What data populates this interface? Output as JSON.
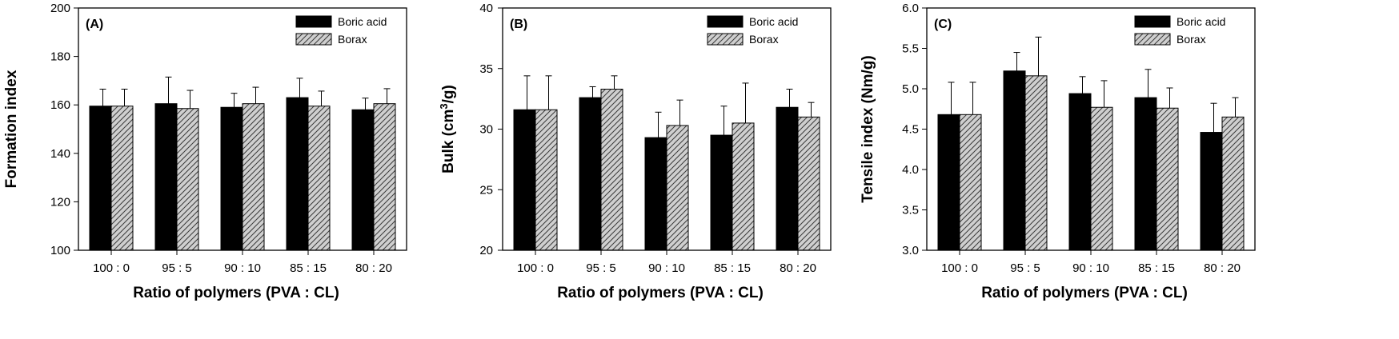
{
  "chart_data": [
    {
      "type": "bar",
      "panel_label": "(A)",
      "xlabel": "Ratio of polymers (PVA : CL)",
      "ylabel": "Formation index",
      "categories": [
        "100 : 0",
        "95 : 5",
        "90 : 10",
        "85 : 15",
        "80 : 20"
      ],
      "ylim": [
        100,
        200
      ],
      "yticks": [
        "100",
        "120",
        "140",
        "160",
        "180",
        "200"
      ],
      "series": [
        {
          "name": "Boric acid",
          "values": [
            159.5,
            160.5,
            159.0,
            163.0,
            158.0
          ],
          "errors": [
            7.0,
            11.0,
            5.8,
            8.0,
            4.8
          ]
        },
        {
          "name": "Borax",
          "values": [
            159.5,
            158.5,
            160.5,
            159.5,
            160.5
          ],
          "errors": [
            7.0,
            7.5,
            6.8,
            6.2,
            6.2
          ]
        }
      ],
      "legend_position": "top-right",
      "grid": false
    },
    {
      "type": "bar",
      "panel_label": "(B)",
      "xlabel": "Ratio of polymers (PVA : CL)",
      "ylabel_main": "Bulk (cm",
      "ylabel_sup": "3",
      "ylabel_tail": "/g)",
      "categories": [
        "100 : 0",
        "95 : 5",
        "90 : 10",
        "85 : 15",
        "80 : 20"
      ],
      "ylim": [
        20,
        40
      ],
      "yticks": [
        "20",
        "25",
        "30",
        "35",
        "40"
      ],
      "series": [
        {
          "name": "Boric acid",
          "values": [
            31.6,
            32.6,
            29.3,
            29.5,
            31.8
          ],
          "errors": [
            2.8,
            0.9,
            2.1,
            2.4,
            1.5
          ]
        },
        {
          "name": "Borax",
          "values": [
            31.6,
            33.3,
            30.3,
            30.5,
            31.0
          ],
          "errors": [
            2.8,
            1.1,
            2.1,
            3.3,
            1.2
          ]
        }
      ],
      "legend_position": "top-right",
      "grid": false
    },
    {
      "type": "bar",
      "panel_label": "(C)",
      "xlabel": "Ratio of polymers (PVA : CL)",
      "ylabel": "Tensile index (Nm/g)",
      "categories": [
        "100 : 0",
        "95 : 5",
        "90 : 10",
        "85 : 15",
        "80 : 20"
      ],
      "ylim": [
        3.0,
        6.0
      ],
      "yticks": [
        "3.0",
        "3.5",
        "4.0",
        "4.5",
        "5.0",
        "5.5",
        "6.0"
      ],
      "series": [
        {
          "name": "Boric acid",
          "values": [
            4.68,
            5.22,
            4.94,
            4.89,
            4.46
          ],
          "errors": [
            0.4,
            0.23,
            0.21,
            0.35,
            0.36
          ]
        },
        {
          "name": "Borax",
          "values": [
            4.68,
            5.16,
            4.77,
            4.76,
            4.65
          ],
          "errors": [
            0.4,
            0.48,
            0.33,
            0.25,
            0.24
          ]
        }
      ],
      "legend_position": "top-right",
      "grid": false
    }
  ]
}
